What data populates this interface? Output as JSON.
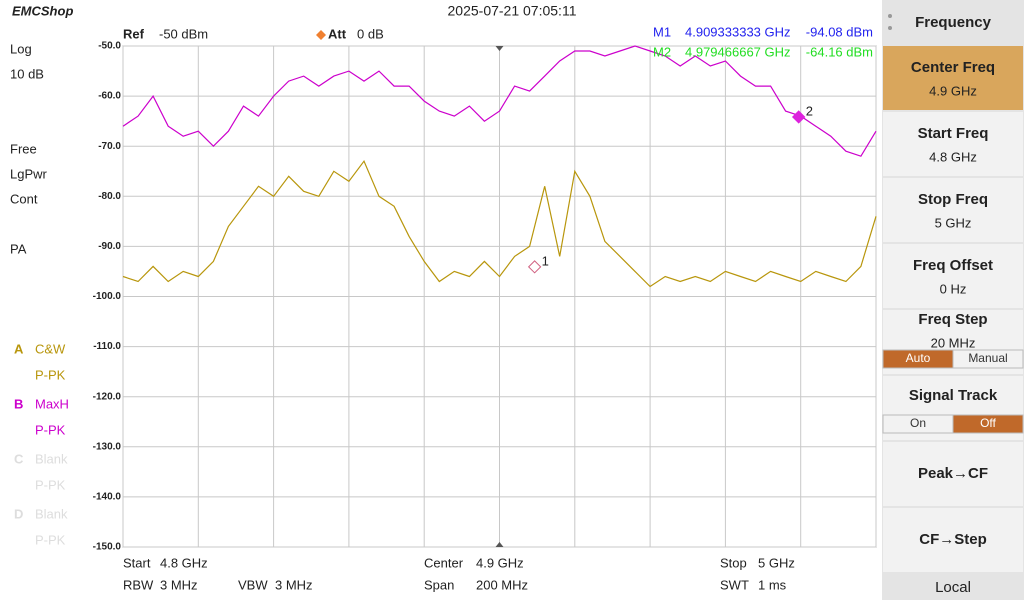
{
  "header": {
    "logo": "EMCShop",
    "datetime": "2025-07-21 07:05:11"
  },
  "status": {
    "scale_type": "Log",
    "scale_div": "10 dB",
    "sweep_mode": "Free",
    "detector_mode": "LgPwr",
    "sweep": "Cont",
    "preamp": "PA"
  },
  "settings": {
    "ref_label": "Ref",
    "ref": "-50 dBm",
    "att_label": "Att",
    "att": "0 dB"
  },
  "inactive_traces": [
    {
      "name": "C",
      "mode": "Blank",
      "detector": "P-PK"
    },
    {
      "name": "D",
      "mode": "Blank",
      "detector": "P-PK"
    }
  ],
  "footer": {
    "start_label": "Start",
    "start": "4.8 GHz",
    "center_label": "Center",
    "center": "4.9 GHz",
    "stop_label": "Stop",
    "stop": "5 GHz",
    "rbw_label": "RBW",
    "rbw": "3 MHz",
    "vbw_label": "VBW",
    "vbw": "3 MHz",
    "span_label": "Span",
    "span": "200 MHz",
    "swt_label": "SWT",
    "swt": "1 ms"
  },
  "menu": {
    "title": "Frequency",
    "items": [
      {
        "label": "Center Freq",
        "value": "4.9 GHz",
        "active": true
      },
      {
        "label": "Start Freq",
        "value": "4.8 GHz"
      },
      {
        "label": "Stop Freq",
        "value": "5 GHz"
      },
      {
        "label": "Freq Offset",
        "value": "0 Hz"
      },
      {
        "label": "Freq Step",
        "value": "20 MHz",
        "options": [
          "Auto",
          "Manual"
        ],
        "selected": 0
      },
      {
        "label": "Signal Track",
        "options": [
          "On",
          "Off"
        ],
        "selected": 1
      },
      {
        "label": "Peak→CF"
      },
      {
        "label": "CF→Step"
      }
    ],
    "status": "Local"
  },
  "chart_data": {
    "type": "line",
    "xlim": [
      4.8,
      5.0
    ],
    "ylim": [
      -150,
      -50
    ],
    "xticks": [
      4.8,
      4.82,
      4.84,
      4.86,
      4.88,
      4.9,
      4.92,
      4.94,
      4.96,
      4.98,
      5.0
    ],
    "yticks": [
      {
        "value": -50,
        "label": "-50.0"
      },
      {
        "value": -60,
        "label": "-60.0"
      },
      {
        "value": -70,
        "label": "-70.0"
      },
      {
        "value": -80,
        "label": "-80.0"
      },
      {
        "value": -90,
        "label": "-90.0"
      },
      {
        "value": -100,
        "label": "-100.0"
      },
      {
        "value": -110,
        "label": "-110.0"
      },
      {
        "value": -120,
        "label": "-120.0"
      },
      {
        "value": -130,
        "label": "-130.0"
      },
      {
        "value": -140,
        "label": "-140.0"
      },
      {
        "value": -150,
        "label": "-150.0"
      }
    ],
    "grid": true,
    "x": [
      4.8,
      4.804,
      4.808,
      4.812,
      4.816,
      4.82,
      4.824,
      4.828,
      4.832,
      4.836,
      4.84,
      4.844,
      4.848,
      4.852,
      4.856,
      4.86,
      4.864,
      4.868,
      4.872,
      4.876,
      4.88,
      4.884,
      4.888,
      4.892,
      4.896,
      4.9,
      4.904,
      4.908,
      4.912,
      4.916,
      4.92,
      4.924,
      4.928,
      4.932,
      4.936,
      4.94,
      4.944,
      4.948,
      4.952,
      4.956,
      4.96,
      4.964,
      4.968,
      4.972,
      4.976,
      4.98,
      4.984,
      4.988,
      4.992,
      4.996,
      5.0
    ],
    "series": [
      {
        "name": "A",
        "mode": "C&W",
        "detector": "P-PK",
        "color": "#b8960c",
        "values": [
          -96,
          -97,
          -94,
          -97,
          -95,
          -96,
          -93,
          -86,
          -82,
          -78,
          -80,
          -76,
          -79,
          -80,
          -75,
          -77,
          -73,
          -80,
          -82,
          -88,
          -93,
          -97,
          -95,
          -96,
          -93,
          -96,
          -92,
          -90,
          -78,
          -92,
          -75,
          -80,
          -89,
          -92,
          -95,
          -98,
          -96,
          -97,
          -96,
          -97,
          -95,
          -96,
          -97,
          -95,
          -96,
          -97,
          -95,
          -96,
          -97,
          -94,
          -84
        ]
      },
      {
        "name": "B",
        "mode": "MaxH",
        "detector": "P-PK",
        "color": "#cc00cc",
        "values": [
          -66,
          -64,
          -60,
          -66,
          -68,
          -67,
          -70,
          -67,
          -62,
          -64,
          -60,
          -57,
          -56,
          -58,
          -56,
          -55,
          -57,
          -55,
          -58,
          -58,
          -61,
          -63,
          -64,
          -62,
          -65,
          -63,
          -58,
          -59,
          -56,
          -53,
          -51,
          -51,
          -52,
          -51,
          -50,
          -51,
          -52,
          -54,
          -52,
          -54,
          -53,
          -56,
          -58,
          -58,
          -63,
          -64,
          -66,
          -68,
          -71,
          -72,
          -67
        ]
      }
    ],
    "markers": [
      {
        "name": "M1",
        "id": "1",
        "x": 4.909333333,
        "x_label": "4.909333333 GHz",
        "value": -94.08,
        "value_label": "-94.08 dBm",
        "color": "#2222ee",
        "mark_color": "#d06080",
        "filled": false
      },
      {
        "name": "M2",
        "id": "2",
        "x": 4.979466667,
        "x_label": "4.979466667 GHz",
        "value": -64.16,
        "value_label": "-64.16 dBm",
        "color": "#22dd22",
        "mark_color": "#dd22dd",
        "filled": true
      }
    ]
  }
}
